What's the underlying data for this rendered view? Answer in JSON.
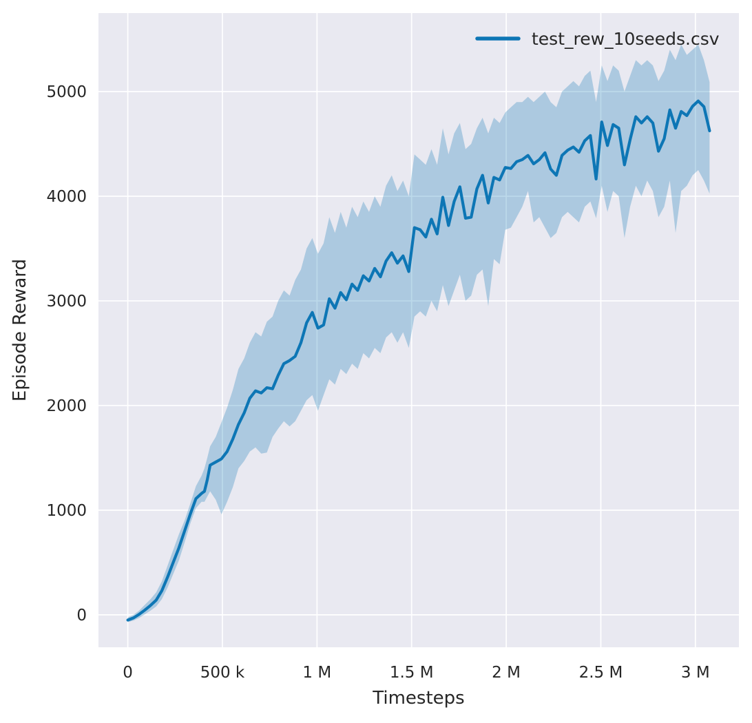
{
  "chart_data": {
    "type": "line",
    "title": "",
    "xlabel": "Timesteps",
    "ylabel": "Episode Reward",
    "legend_position": "upper right",
    "grid": true,
    "xlim": [
      -155000,
      3230000
    ],
    "ylim": [
      -310,
      5750
    ],
    "xticks": [
      {
        "v": 0,
        "label": "0"
      },
      {
        "v": 500000,
        "label": "500 k"
      },
      {
        "v": 1000000,
        "label": "1 M"
      },
      {
        "v": 1500000,
        "label": "1.5 M"
      },
      {
        "v": 2000000,
        "label": "2 M"
      },
      {
        "v": 2500000,
        "label": "2.5 M"
      },
      {
        "v": 3000000,
        "label": "3 M"
      }
    ],
    "yticks": [
      {
        "v": 0,
        "label": "0"
      },
      {
        "v": 1000,
        "label": "1000"
      },
      {
        "v": 2000,
        "label": "2000"
      },
      {
        "v": 3000,
        "label": "3000"
      },
      {
        "v": 4000,
        "label": "4000"
      },
      {
        "v": 5000,
        "label": "5000"
      }
    ],
    "colors": {
      "line": "#0d76b5",
      "band_opacity": 0.28,
      "axes_bg": "#e9e9f1",
      "grid": "#ffffff",
      "text": "#262626"
    },
    "series": [
      {
        "name": "test_rew_10seeds.csv",
        "comment": "points are [timestep, mean_reward, band_low, band_high]",
        "points": [
          [
            0,
            -50,
            -70,
            -25
          ],
          [
            30000,
            -30,
            -55,
            0
          ],
          [
            60000,
            5,
            -30,
            40
          ],
          [
            90000,
            45,
            5,
            95
          ],
          [
            120000,
            90,
            40,
            150
          ],
          [
            150000,
            140,
            80,
            215
          ],
          [
            180000,
            230,
            150,
            320
          ],
          [
            210000,
            360,
            260,
            470
          ],
          [
            240000,
            500,
            390,
            620
          ],
          [
            270000,
            640,
            520,
            770
          ],
          [
            300000,
            800,
            690,
            900
          ],
          [
            330000,
            960,
            870,
            1060
          ],
          [
            360000,
            1110,
            1020,
            1230
          ],
          [
            390000,
            1160,
            1080,
            1330
          ],
          [
            405000,
            1180,
            1080,
            1400
          ],
          [
            420000,
            1290,
            1130,
            1500
          ],
          [
            435000,
            1430,
            1180,
            1610
          ],
          [
            465000,
            1460,
            1100,
            1700
          ],
          [
            495000,
            1490,
            960,
            1840
          ],
          [
            525000,
            1560,
            1080,
            1980
          ],
          [
            555000,
            1680,
            1220,
            2150
          ],
          [
            585000,
            1820,
            1400,
            2350
          ],
          [
            615000,
            1930,
            1470,
            2450
          ],
          [
            645000,
            2070,
            1560,
            2600
          ],
          [
            675000,
            2140,
            1600,
            2700
          ],
          [
            705000,
            2120,
            1540,
            2660
          ],
          [
            735000,
            2170,
            1550,
            2800
          ],
          [
            765000,
            2160,
            1700,
            2850
          ],
          [
            795000,
            2290,
            1780,
            3000
          ],
          [
            825000,
            2400,
            1850,
            3100
          ],
          [
            855000,
            2430,
            1800,
            3050
          ],
          [
            885000,
            2470,
            1850,
            3200
          ],
          [
            915000,
            2600,
            1950,
            3300
          ],
          [
            945000,
            2790,
            2050,
            3500
          ],
          [
            975000,
            2890,
            2100,
            3600
          ],
          [
            1005000,
            2740,
            1950,
            3450
          ],
          [
            1035000,
            2770,
            2100,
            3550
          ],
          [
            1065000,
            3020,
            2250,
            3800
          ],
          [
            1095000,
            2930,
            2200,
            3650
          ],
          [
            1125000,
            3080,
            2350,
            3850
          ],
          [
            1155000,
            3010,
            2300,
            3700
          ],
          [
            1185000,
            3160,
            2400,
            3900
          ],
          [
            1215000,
            3100,
            2350,
            3800
          ],
          [
            1245000,
            3240,
            2500,
            3950
          ],
          [
            1275000,
            3190,
            2450,
            3850
          ],
          [
            1305000,
            3310,
            2550,
            4000
          ],
          [
            1335000,
            3230,
            2500,
            3900
          ],
          [
            1365000,
            3380,
            2650,
            4100
          ],
          [
            1395000,
            3460,
            2700,
            4200
          ],
          [
            1425000,
            3360,
            2600,
            4050
          ],
          [
            1455000,
            3430,
            2700,
            4150
          ],
          [
            1485000,
            3280,
            2550,
            4000
          ],
          [
            1515000,
            3700,
            2850,
            4400
          ],
          [
            1545000,
            3680,
            2900,
            4350
          ],
          [
            1575000,
            3610,
            2850,
            4300
          ],
          [
            1605000,
            3780,
            3000,
            4450
          ],
          [
            1635000,
            3640,
            2900,
            4300
          ],
          [
            1665000,
            3990,
            3150,
            4650
          ],
          [
            1695000,
            3720,
            2950,
            4400
          ],
          [
            1725000,
            3950,
            3100,
            4600
          ],
          [
            1755000,
            4090,
            3250,
            4700
          ],
          [
            1785000,
            3790,
            3000,
            4450
          ],
          [
            1815000,
            3800,
            3050,
            4500
          ],
          [
            1845000,
            4070,
            3250,
            4650
          ],
          [
            1875000,
            4200,
            3300,
            4750
          ],
          [
            1905000,
            3935,
            2950,
            4600
          ],
          [
            1935000,
            4180,
            3400,
            4750
          ],
          [
            1965000,
            4155,
            3350,
            4700
          ],
          [
            1995000,
            4275,
            3680,
            4800
          ],
          [
            2025000,
            4265,
            3700,
            4850
          ],
          [
            2055000,
            4330,
            3800,
            4900
          ],
          [
            2085000,
            4350,
            3900,
            4900
          ],
          [
            2115000,
            4390,
            4050,
            4950
          ],
          [
            2145000,
            4310,
            3750,
            4900
          ],
          [
            2175000,
            4350,
            3800,
            4950
          ],
          [
            2205000,
            4415,
            3700,
            5000
          ],
          [
            2235000,
            4260,
            3600,
            4900
          ],
          [
            2265000,
            4200,
            3650,
            4850
          ],
          [
            2295000,
            4390,
            3800,
            5000
          ],
          [
            2325000,
            4440,
            3850,
            5050
          ],
          [
            2355000,
            4470,
            3800,
            5100
          ],
          [
            2385000,
            4420,
            3750,
            5050
          ],
          [
            2415000,
            4530,
            3900,
            5150
          ],
          [
            2445000,
            4580,
            3950,
            5200
          ],
          [
            2475000,
            4165,
            3790,
            4900
          ],
          [
            2505000,
            4710,
            4100,
            5250
          ],
          [
            2535000,
            4485,
            3850,
            5100
          ],
          [
            2565000,
            4685,
            4050,
            5250
          ],
          [
            2595000,
            4650,
            4000,
            5200
          ],
          [
            2625000,
            4300,
            3600,
            5000
          ],
          [
            2655000,
            4540,
            3900,
            5150
          ],
          [
            2685000,
            4760,
            4100,
            5300
          ],
          [
            2715000,
            4700,
            4000,
            5250
          ],
          [
            2745000,
            4760,
            4150,
            5300
          ],
          [
            2775000,
            4700,
            4050,
            5250
          ],
          [
            2805000,
            4430,
            3800,
            5100
          ],
          [
            2835000,
            4550,
            3900,
            5200
          ],
          [
            2865000,
            4825,
            4150,
            5400
          ],
          [
            2895000,
            4650,
            3650,
            5300
          ],
          [
            2925000,
            4810,
            4050,
            5450
          ],
          [
            2955000,
            4770,
            4100,
            5350
          ],
          [
            2985000,
            4860,
            4200,
            5400
          ],
          [
            3015000,
            4910,
            4250,
            5450
          ],
          [
            3045000,
            4855,
            4150,
            5300
          ],
          [
            3075000,
            4625,
            4025,
            5090
          ]
        ]
      }
    ]
  }
}
